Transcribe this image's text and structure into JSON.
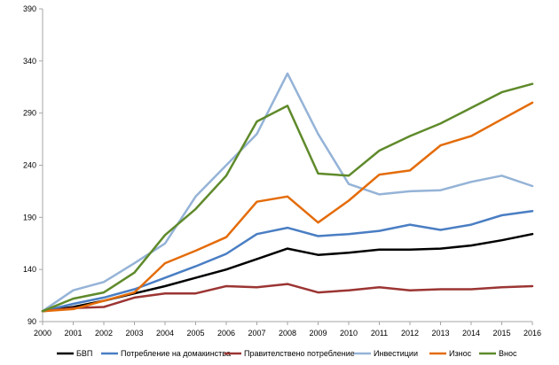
{
  "chart_data": {
    "type": "line",
    "title": "",
    "xlabel": "",
    "ylabel": "",
    "ylim": [
      90,
      390
    ],
    "yticks": [
      90,
      140,
      190,
      240,
      290,
      340,
      390
    ],
    "grid": false,
    "legend": "bottom",
    "categories": [
      "2000",
      "2001",
      "2002",
      "2003",
      "2004",
      "2005",
      "2006",
      "2007",
      "2008",
      "2009",
      "2010",
      "2011",
      "2012",
      "2013",
      "2014",
      "2015",
      "2016"
    ],
    "series": [
      {
        "name": "БВП",
        "color": "#000000",
        "values": [
          100,
          104,
          110,
          117,
          124,
          132,
          140,
          150,
          160,
          154,
          156,
          159,
          159,
          160,
          163,
          168,
          174
        ]
      },
      {
        "name": "Потребление на домакинства",
        "color": "#4a7ec3",
        "values": [
          100,
          107,
          113,
          121,
          132,
          143,
          155,
          174,
          180,
          172,
          174,
          177,
          183,
          178,
          183,
          192,
          196
        ]
      },
      {
        "name": "Правителствено потребление",
        "color": "#9b3533",
        "values": [
          100,
          103,
          104,
          113,
          117,
          117,
          124,
          123,
          126,
          118,
          120,
          123,
          120,
          121,
          121,
          123,
          124
        ]
      },
      {
        "name": "Инвестиции",
        "color": "#95b3d7",
        "values": [
          100,
          120,
          128,
          146,
          165,
          210,
          240,
          270,
          328,
          270,
          222,
          212,
          215,
          216,
          224,
          230,
          220
        ]
      },
      {
        "name": "Износ",
        "color": "#e46c0a",
        "values": [
          100,
          102,
          110,
          118,
          146,
          158,
          171,
          205,
          210,
          185,
          206,
          231,
          235,
          259,
          268,
          284,
          300
        ]
      },
      {
        "name": "Внос",
        "color": "#5f8a2b",
        "values": [
          100,
          112,
          118,
          137,
          173,
          198,
          230,
          282,
          297,
          232,
          230,
          254,
          268,
          280,
          295,
          310,
          318
        ]
      }
    ]
  }
}
